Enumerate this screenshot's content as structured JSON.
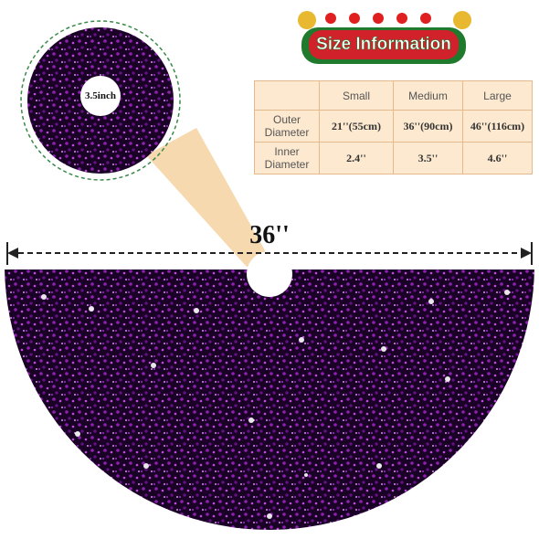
{
  "banner": {
    "title": "Size Information"
  },
  "zoom_label": "3.5inch",
  "dimension_label": "36''",
  "table": {
    "header": [
      "Small",
      "Medium",
      "Large"
    ],
    "rows": [
      {
        "label": "Outer Diameter",
        "cells": [
          "21''(55cm)",
          "36''(90cm)",
          "46''(116cm)"
        ]
      },
      {
        "label": "Inner Diameter",
        "cells": [
          "2.4''",
          "3.5''",
          "4.6''"
        ]
      }
    ]
  }
}
